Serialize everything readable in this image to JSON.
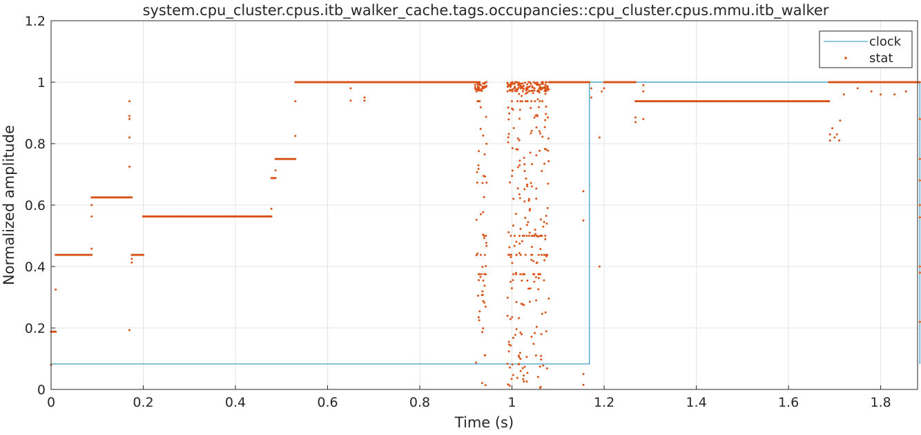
{
  "chart_data": {
    "type": "line",
    "title": "system.cpu_cluster.cpus.itb_walker_cache.tags.occupancies::cpu_cluster.cpus.mmu.itb_walker",
    "xlabel": "Time (s)",
    "ylabel": "Normalized amplitude",
    "xlim": [
      0,
      1.88
    ],
    "ylim": [
      0,
      1.2
    ],
    "xticks": [
      0,
      0.2,
      0.4,
      0.6,
      0.8,
      1,
      1.2,
      1.4,
      1.6,
      1.8
    ],
    "xtick_labels": [
      "0",
      "0.2",
      "0.4",
      "0.6",
      "0.8",
      "1",
      "1.2",
      "1.4",
      "1.6",
      "1.8"
    ],
    "yticks": [
      0,
      0.2,
      0.4,
      0.6,
      0.8,
      1,
      1.2
    ],
    "ytick_labels": [
      "0",
      "0.2",
      "0.4",
      "0.6",
      "0.8",
      "1",
      "1.2"
    ],
    "grid": true,
    "legend": {
      "position": "top-right",
      "entries": [
        "clock",
        "stat"
      ]
    },
    "series": [
      {
        "name": "clock",
        "kind": "step-line",
        "color": "#4da6cc",
        "x": [
          0,
          1.168,
          1.168,
          1.885,
          1.885
        ],
        "y": [
          0.083,
          0.083,
          1.0,
          1.0,
          0.083
        ]
      },
      {
        "name": "stat",
        "kind": "dots",
        "color": "#d95319",
        "plateaus": [
          {
            "x": [
              0.0,
              0.01
            ],
            "y": 0.188
          },
          {
            "x": [
              0.01,
              0.088
            ],
            "y": 0.438
          },
          {
            "x": [
              0.088,
              0.175
            ],
            "y": 0.625
          },
          {
            "x": [
              0.175,
              0.2
            ],
            "y": 0.438
          },
          {
            "x": [
              0.2,
              0.478
            ],
            "y": 0.563
          },
          {
            "x": [
              0.478,
              0.487
            ],
            "y": 0.688
          },
          {
            "x": [
              0.487,
              0.53
            ],
            "y": 0.75
          },
          {
            "x": [
              0.53,
              0.93
            ],
            "y": 1.0
          },
          {
            "x": [
              1.08,
              1.168
            ],
            "y": 1.0
          },
          {
            "x": [
              1.2,
              1.268
            ],
            "y": 1.0
          },
          {
            "x": [
              1.268,
              1.688
            ],
            "y": 0.938
          },
          {
            "x": [
              1.688,
              1.885
            ],
            "y": 1.0
          }
        ],
        "outliers": [
          [
            0.0,
            0.08
          ],
          [
            0.01,
            0.325
          ],
          [
            0.045,
            0.438
          ],
          [
            0.088,
            0.563
          ],
          [
            0.088,
            0.6
          ],
          [
            0.088,
            0.458
          ],
          [
            0.17,
            0.938
          ],
          [
            0.17,
            0.89
          ],
          [
            0.17,
            0.88
          ],
          [
            0.17,
            0.82
          ],
          [
            0.17,
            0.725
          ],
          [
            0.17,
            0.193
          ],
          [
            0.175,
            0.413
          ],
          [
            0.175,
            0.425
          ],
          [
            0.2,
            0.563
          ],
          [
            0.478,
            0.588
          ],
          [
            0.487,
            0.713
          ],
          [
            0.53,
            0.938
          ],
          [
            0.53,
            0.825
          ],
          [
            0.65,
            0.94
          ],
          [
            0.65,
            0.98
          ],
          [
            0.68,
            0.94
          ],
          [
            0.68,
            0.95
          ],
          [
            1.155,
            0.645
          ],
          [
            1.155,
            0.55
          ],
          [
            1.155,
            0.05
          ],
          [
            1.155,
            0.015
          ],
          [
            1.172,
            0.98
          ],
          [
            1.172,
            0.95
          ],
          [
            1.19,
            0.4
          ],
          [
            1.19,
            0.82
          ],
          [
            1.195,
            0.97
          ],
          [
            1.2,
            0.98
          ],
          [
            1.268,
            0.87
          ],
          [
            1.268,
            0.885
          ],
          [
            1.285,
            0.88
          ],
          [
            1.285,
            0.97
          ],
          [
            1.285,
            0.99
          ],
          [
            1.69,
            0.81
          ],
          [
            1.69,
            0.83
          ],
          [
            1.695,
            0.85
          ],
          [
            1.7,
            0.82
          ],
          [
            1.705,
            0.83
          ],
          [
            1.71,
            0.81
          ],
          [
            1.712,
            0.875
          ],
          [
            1.72,
            0.96
          ],
          [
            1.75,
            0.98
          ],
          [
            1.78,
            0.97
          ],
          [
            1.8,
            0.96
          ],
          [
            1.83,
            0.96
          ],
          [
            1.855,
            0.97
          ],
          [
            1.885,
            0.68
          ],
          [
            1.885,
            0.88
          ],
          [
            1.885,
            0.22
          ],
          [
            1.885,
            0.38
          ],
          [
            1.885,
            0.56
          ],
          [
            1.885,
            0.75
          ],
          [
            1.885,
            0.6
          ],
          [
            1.885,
            0.4
          ]
        ],
        "scatter_bands": [
          {
            "x": [
              0.92,
              0.945
            ],
            "y": [
              0.0,
              1.0
            ]
          },
          {
            "x": [
              0.99,
              1.08
            ],
            "y": [
              0.0,
              1.0
            ]
          }
        ],
        "band_clusters": [
          0.5,
          0.438,
          0.375,
          1.0,
          0.938
        ]
      }
    ]
  }
}
